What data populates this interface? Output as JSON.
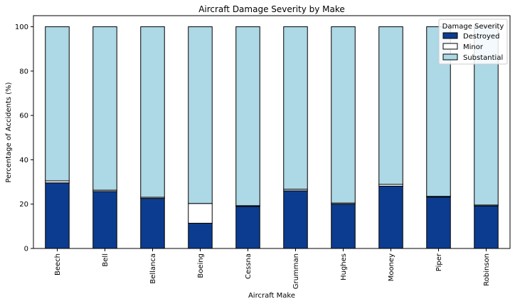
{
  "chart_data": {
    "type": "bar",
    "stacked": true,
    "title": "Aircraft Damage Severity by Make",
    "xlabel": "Aircraft Make",
    "ylabel": "Percentage of Accidents (%)",
    "ylim": [
      0,
      105
    ],
    "yticks": [
      0,
      20,
      40,
      60,
      80,
      100
    ],
    "grid": false,
    "legend": {
      "title": "Damage Severity",
      "placement": "top-right"
    },
    "categories": [
      "Beech",
      "Bell",
      "Bellanca",
      "Boeing",
      "Cessna",
      "Grumman",
      "Hughes",
      "Mooney",
      "Piper",
      "Robinson"
    ],
    "series": [
      {
        "name": "Destroyed",
        "color": "#0c3c8f",
        "values": [
          29.6,
          25.7,
          22.6,
          11.4,
          19.0,
          26.0,
          20.0,
          28.1,
          23.2,
          19.2
        ]
      },
      {
        "name": "Minor",
        "color": "#ffffff",
        "values": [
          0.9,
          0.6,
          0.5,
          8.9,
          0.3,
          0.7,
          0.5,
          0.8,
          0.3,
          0.4
        ]
      },
      {
        "name": "Substantial",
        "color": "#add8e6",
        "values": [
          69.5,
          73.7,
          76.9,
          79.7,
          80.7,
          73.3,
          79.5,
          71.1,
          76.5,
          80.4
        ]
      }
    ]
  }
}
